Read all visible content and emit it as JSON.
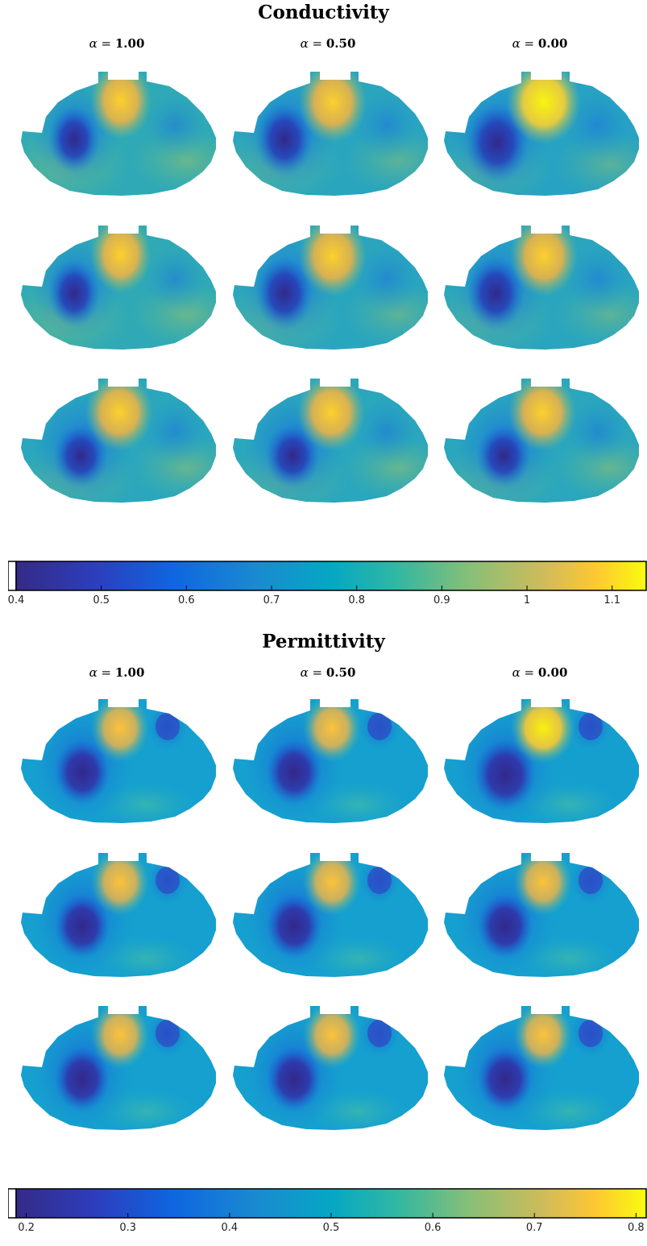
{
  "panels": [
    {
      "title": "Conductivity",
      "columns": [
        {
          "alpha_symbol": "α",
          "eq": " = ",
          "value": "1.00"
        },
        {
          "alpha_symbol": "α",
          "eq": " = ",
          "value": "0.50"
        },
        {
          "alpha_symbol": "α",
          "eq": " = ",
          "value": "0.00"
        }
      ],
      "colorbar": {
        "min": 0.4,
        "max": 1.14,
        "ticks": [
          "0.4",
          "0.5",
          "0.6",
          "0.7",
          "0.8",
          "0.9",
          "1",
          "1.1"
        ],
        "tick_values": [
          0.4,
          0.5,
          0.6,
          0.7,
          0.8,
          0.9,
          1.0,
          1.1
        ]
      }
    },
    {
      "title": "Permittivity",
      "columns": [
        {
          "alpha_symbol": "α",
          "eq": " = ",
          "value": "1.00"
        },
        {
          "alpha_symbol": "α",
          "eq": " = ",
          "value": "0.50"
        },
        {
          "alpha_symbol": "α",
          "eq": " = ",
          "value": "0.00"
        }
      ],
      "colorbar": {
        "min": 0.19,
        "max": 0.81,
        "ticks": [
          "0.2",
          "0.3",
          "0.4",
          "0.5",
          "0.6",
          "0.7",
          "0.8"
        ],
        "tick_values": [
          0.2,
          0.3,
          0.4,
          0.5,
          0.6,
          0.7,
          0.8
        ]
      }
    }
  ],
  "colormap": "parula",
  "colors": {
    "parula": [
      "#352a87",
      "#0f5cdd",
      "#1481d6",
      "#06a4ca",
      "#2eb7a4",
      "#87bf77",
      "#d1bb59",
      "#fec832",
      "#f9fb0e"
    ]
  }
}
